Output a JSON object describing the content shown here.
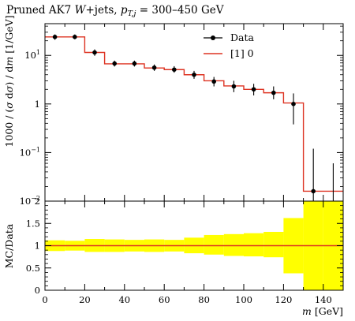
{
  "title": "Pruned AK7 W+jets, p_T,j = 300–450 GeV",
  "title_parts": {
    "pre": "Pruned AK7 ",
    "w": "W",
    "post": "+jets, ",
    "p": "p",
    "sub": "T,j",
    "range": " = 300–450 GeV"
  },
  "colors": {
    "mc": "#dd3322",
    "band": "#ffff00",
    "data": "#000000"
  },
  "chart_data": [
    {
      "type": "line",
      "panel": "main",
      "ylabel": "1000/σ dσ/dm [1/GeV]",
      "ylabel_parts": [
        "1000 / (",
        "σ",
        " d",
        "σ",
        ") / d",
        "m",
        " [1/GeV]"
      ],
      "yscale": "log",
      "xlim": [
        0,
        150
      ],
      "ylim": [
        0.01,
        45
      ],
      "yticks": [
        {
          "value": 0.01,
          "base": "10",
          "exp": "−2"
        },
        {
          "value": 0.1,
          "base": "10",
          "exp": "−1"
        },
        {
          "value": 1,
          "base": "1",
          "exp": ""
        },
        {
          "value": 10,
          "base": "10",
          "exp": "1"
        }
      ],
      "legend_position": "top-right",
      "series": [
        {
          "name": "Data",
          "style": "points",
          "x": [
            5,
            15,
            25,
            35,
            45,
            55,
            65,
            75,
            85,
            95,
            105,
            115,
            125,
            135,
            145
          ],
          "y": [
            24,
            24,
            11.5,
            6.8,
            6.8,
            5.6,
            5.1,
            4.0,
            2.9,
            2.3,
            2.0,
            1.7,
            1.0,
            0.016,
            0.009
          ],
          "y_low": [
            21,
            21.5,
            9.8,
            5.9,
            5.9,
            4.8,
            4.4,
            3.3,
            2.3,
            1.75,
            1.5,
            1.25,
            0.38,
            0.0085,
            0.006
          ],
          "y_high": [
            27,
            27,
            13.3,
            7.8,
            7.8,
            6.5,
            6.0,
            4.8,
            3.6,
            3.0,
            2.6,
            2.3,
            1.65,
            0.12,
            0.06
          ],
          "x_low": [
            0,
            10,
            20,
            30,
            40,
            50,
            60,
            70,
            80,
            90,
            100,
            110,
            120,
            130,
            140
          ],
          "x_high": [
            10,
            20,
            30,
            40,
            50,
            60,
            70,
            80,
            90,
            100,
            110,
            120,
            130,
            140,
            150
          ]
        },
        {
          "name": "[1] 0",
          "style": "step",
          "edges": [
            0,
            10,
            20,
            30,
            40,
            50,
            60,
            70,
            80,
            90,
            100,
            110,
            120,
            130,
            140,
            150
          ],
          "values": [
            24,
            24,
            11.5,
            6.7,
            6.7,
            5.5,
            5.1,
            4.0,
            3.0,
            2.35,
            2.0,
            1.7,
            1.05,
            0.016,
            0.016
          ]
        }
      ]
    },
    {
      "type": "area",
      "panel": "ratio",
      "ylabel": "MC/Data",
      "xlabel_var": "m",
      "xlabel_unit": "[GeV]",
      "xlim": [
        0,
        150
      ],
      "ylim": [
        0,
        2
      ],
      "xticks": [
        0,
        20,
        40,
        60,
        80,
        100,
        120,
        140
      ],
      "yticks": [
        0,
        0.5,
        1,
        1.5,
        2
      ],
      "series": [
        {
          "name": "Data uncertainty",
          "style": "band",
          "edges": [
            0,
            10,
            20,
            30,
            40,
            50,
            60,
            70,
            80,
            90,
            100,
            110,
            120,
            130,
            140,
            150
          ],
          "low": [
            0.88,
            0.89,
            0.86,
            0.86,
            0.87,
            0.86,
            0.87,
            0.83,
            0.8,
            0.77,
            0.76,
            0.74,
            0.38,
            0.0,
            0.0
          ],
          "high": [
            1.12,
            1.11,
            1.15,
            1.14,
            1.13,
            1.14,
            1.13,
            1.18,
            1.24,
            1.26,
            1.28,
            1.31,
            1.62,
            2.0,
            2.0
          ]
        },
        {
          "name": "[1] 0",
          "style": "line",
          "x": [
            0,
            150
          ],
          "y": [
            1,
            1
          ]
        }
      ]
    }
  ]
}
